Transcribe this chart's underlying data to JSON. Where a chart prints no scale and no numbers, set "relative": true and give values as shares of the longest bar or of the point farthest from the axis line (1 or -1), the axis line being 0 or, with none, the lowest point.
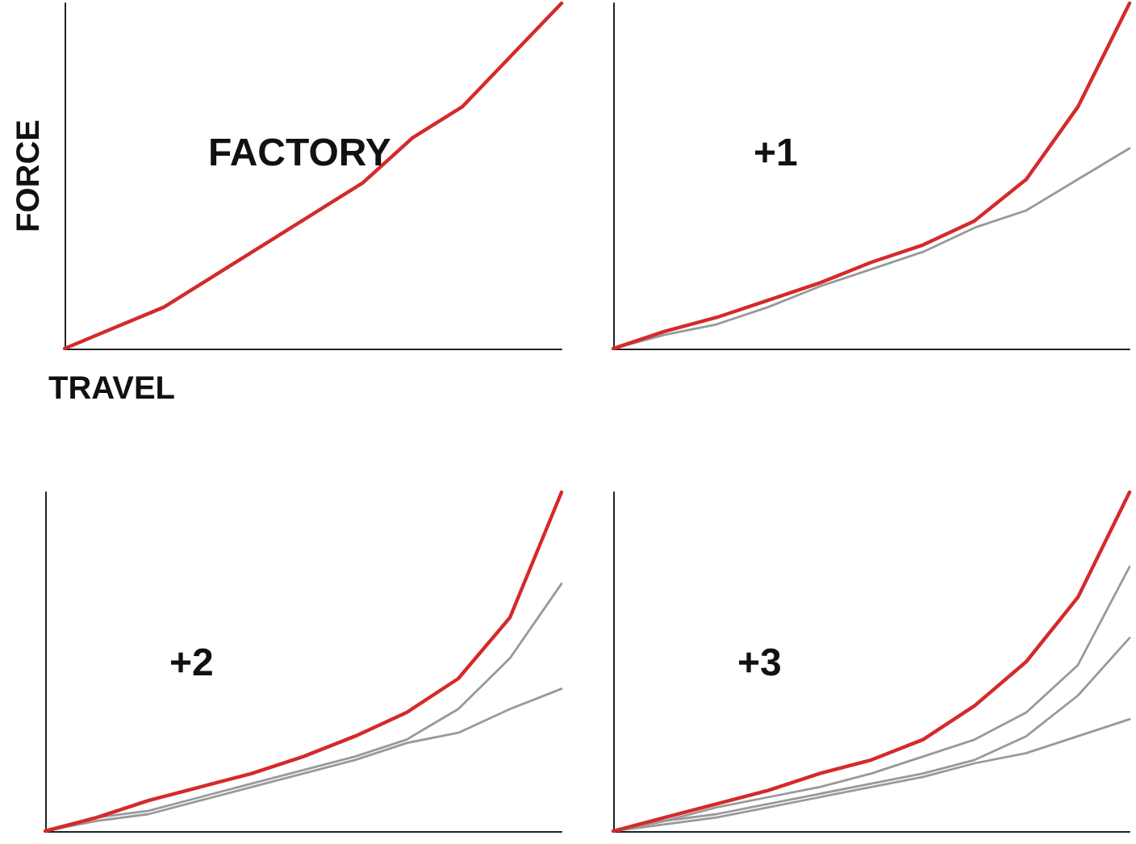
{
  "chart_data": [
    {
      "type": "line",
      "title": "FACTORY",
      "xlabel": "TRAVEL",
      "ylabel": "FORCE",
      "relative": true,
      "grid": false,
      "marker": "none",
      "categories": [
        null,
        null,
        null,
        null,
        null,
        null,
        null,
        null,
        null,
        null,
        null
      ],
      "series": [
        {
          "color": "#d42a2a",
          "values": [
            0,
            0.06,
            0.12,
            0.21,
            0.3,
            0.39,
            0.48,
            0.61,
            0.7,
            0.85,
            1
          ]
        }
      ]
    },
    {
      "type": "line",
      "title": "+1",
      "relative": true,
      "grid": false,
      "marker": "none",
      "categories": [
        null,
        null,
        null,
        null,
        null,
        null,
        null,
        null,
        null,
        null,
        null
      ],
      "series": [
        {
          "color": "#999999",
          "values": [
            0,
            0.04,
            0.07,
            0.12,
            0.18,
            0.23,
            0.28,
            0.35,
            0.4,
            0.49,
            0.58
          ]
        },
        {
          "color": "#d42a2a",
          "values": [
            0,
            0.05,
            0.09,
            0.14,
            0.19,
            0.25,
            0.3,
            0.37,
            0.49,
            0.7,
            1
          ]
        }
      ]
    },
    {
      "type": "line",
      "title": "+2",
      "relative": true,
      "grid": false,
      "marker": "none",
      "categories": [
        null,
        null,
        null,
        null,
        null,
        null,
        null,
        null,
        null,
        null,
        null
      ],
      "series": [
        {
          "color": "#999999",
          "values": [
            0,
            0.03,
            0.05,
            0.09,
            0.13,
            0.17,
            0.21,
            0.26,
            0.29,
            0.36,
            0.42
          ]
        },
        {
          "color": "#999999",
          "values": [
            0,
            0.04,
            0.06,
            0.1,
            0.14,
            0.18,
            0.22,
            0.27,
            0.36,
            0.51,
            0.73
          ]
        },
        {
          "color": "#d42a2a",
          "values": [
            0,
            0.04,
            0.09,
            0.13,
            0.17,
            0.22,
            0.28,
            0.35,
            0.45,
            0.63,
            1
          ]
        }
      ]
    },
    {
      "type": "line",
      "title": "+3",
      "relative": true,
      "grid": false,
      "marker": "none",
      "categories": [
        null,
        null,
        null,
        null,
        null,
        null,
        null,
        null,
        null,
        null,
        null
      ],
      "series": [
        {
          "color": "#999999",
          "values": [
            0,
            0.02,
            0.04,
            0.07,
            0.1,
            0.13,
            0.16,
            0.2,
            0.23,
            0.28,
            0.33
          ]
        },
        {
          "color": "#999999",
          "values": [
            0,
            0.03,
            0.05,
            0.08,
            0.11,
            0.14,
            0.17,
            0.21,
            0.28,
            0.4,
            0.57
          ]
        },
        {
          "color": "#999999",
          "values": [
            0,
            0.03,
            0.07,
            0.1,
            0.13,
            0.17,
            0.22,
            0.27,
            0.35,
            0.49,
            0.78
          ]
        },
        {
          "color": "#d42a2a",
          "values": [
            0,
            0.04,
            0.08,
            0.12,
            0.17,
            0.21,
            0.27,
            0.37,
            0.5,
            0.69,
            1
          ]
        }
      ]
    }
  ]
}
